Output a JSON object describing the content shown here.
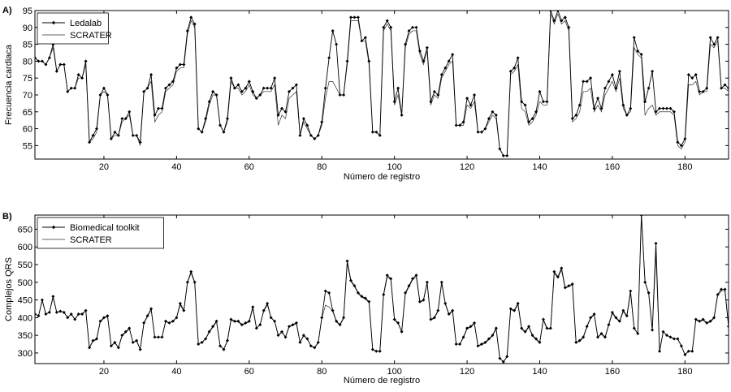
{
  "chart_data": [
    {
      "type": "line",
      "panel_label": "A)",
      "xlabel": "Número de registro",
      "ylabel": "Frecuencia cardiaca",
      "xlim": [
        1,
        192
      ],
      "ylim": [
        51,
        95
      ],
      "xticks": [
        20,
        40,
        60,
        80,
        100,
        120,
        140,
        160,
        180
      ],
      "yticks": [
        55,
        60,
        65,
        70,
        75,
        80,
        85,
        90,
        95
      ],
      "legend_position": "top-left",
      "grid": false,
      "series": [
        {
          "name": "Ledalab",
          "marker": "diamond",
          "values": [
            81,
            80,
            80,
            79,
            81,
            85,
            77,
            79,
            79,
            71,
            72,
            72,
            76,
            75,
            80,
            56,
            58,
            60,
            70,
            72,
            70,
            57,
            59,
            58,
            63,
            63,
            65,
            58,
            58,
            56,
            71,
            72,
            76,
            64,
            66,
            66,
            72,
            73,
            74,
            78,
            79,
            79,
            89,
            93,
            91,
            60,
            59,
            63,
            68,
            71,
            70,
            61,
            59,
            63,
            75,
            72,
            73,
            71,
            72,
            74,
            71,
            69,
            70,
            72,
            72,
            72,
            75,
            64,
            66,
            65,
            71,
            72,
            73,
            58,
            63,
            61,
            58,
            57,
            58,
            62,
            72,
            81,
            89,
            85,
            70,
            70,
            80,
            93,
            93,
            93,
            86,
            87,
            80,
            59,
            59,
            58,
            90,
            92,
            90,
            68,
            72,
            64,
            85,
            89,
            90,
            90,
            83,
            80,
            84,
            68,
            71,
            70,
            76,
            78,
            80,
            82,
            61,
            61,
            62,
            69,
            67,
            70,
            59,
            59,
            60,
            63,
            65,
            64,
            54,
            52,
            52,
            77,
            78,
            81,
            68,
            67,
            62,
            63,
            65,
            71,
            68,
            68,
            95,
            92,
            95,
            92,
            93,
            90,
            63,
            64,
            67,
            74,
            74,
            75,
            66,
            69,
            66,
            72,
            74,
            76,
            72,
            77,
            67,
            64,
            66,
            87,
            83,
            82,
            68,
            72,
            77,
            65,
            66,
            66,
            66,
            66,
            65,
            56,
            55,
            57,
            76,
            75,
            76,
            71,
            71,
            72,
            87,
            85,
            87,
            72,
            73,
            72,
            64,
            62,
            62
          ]
        },
        {
          "name": "SCRATER",
          "marker": "none",
          "values": [
            81,
            80,
            80,
            79,
            81,
            84,
            77,
            79,
            79,
            71,
            72,
            72,
            75,
            75,
            79,
            56,
            57,
            59,
            70,
            71,
            70,
            57,
            58,
            58,
            62,
            63,
            64,
            58,
            58,
            55,
            71,
            72,
            74,
            62,
            64,
            65,
            71,
            72,
            73,
            77,
            78,
            78,
            88,
            92,
            90,
            60,
            59,
            62,
            67,
            70,
            70,
            61,
            59,
            62,
            74,
            72,
            72,
            70,
            71,
            73,
            70,
            69,
            70,
            71,
            71,
            71,
            73,
            61,
            64,
            63,
            69,
            70,
            71,
            58,
            62,
            60,
            58,
            57,
            58,
            61,
            69,
            74,
            74,
            72,
            70,
            70,
            79,
            92,
            92,
            92,
            86,
            86,
            79,
            59,
            59,
            58,
            89,
            91,
            89,
            67,
            70,
            64,
            84,
            88,
            89,
            89,
            82,
            79,
            83,
            67,
            70,
            69,
            75,
            77,
            79,
            80,
            61,
            61,
            61,
            67,
            66,
            68,
            59,
            59,
            60,
            62,
            64,
            63,
            54,
            52,
            52,
            76,
            77,
            79,
            66,
            65,
            61,
            62,
            64,
            68,
            67,
            67,
            94,
            91,
            94,
            91,
            92,
            89,
            62,
            63,
            65,
            71,
            71,
            72,
            65,
            67,
            65,
            70,
            72,
            74,
            71,
            75,
            66,
            64,
            65,
            84,
            82,
            81,
            64,
            66,
            67,
            64,
            65,
            65,
            65,
            65,
            64,
            55,
            54,
            56,
            73,
            73,
            74,
            70,
            71,
            71,
            85,
            84,
            86,
            72,
            72,
            71,
            63,
            61,
            61
          ]
        }
      ]
    },
    {
      "type": "line",
      "panel_label": "B)",
      "xlabel": "Número de registro",
      "ylabel": "Complejos QRS",
      "xlim": [
        1,
        192
      ],
      "ylim": [
        270,
        690
      ],
      "xticks": [
        20,
        40,
        60,
        80,
        100,
        120,
        140,
        160,
        180
      ],
      "yticks": [
        300,
        350,
        400,
        450,
        500,
        550,
        600,
        650
      ],
      "legend_position": "top-left",
      "grid": false,
      "series": [
        {
          "name": "Biomedical toolkit",
          "marker": "diamond",
          "values": [
            410,
            405,
            450,
            410,
            415,
            460,
            415,
            418,
            415,
            400,
            410,
            395,
            410,
            410,
            420,
            315,
            335,
            340,
            390,
            400,
            405,
            320,
            330,
            315,
            350,
            360,
            370,
            330,
            335,
            310,
            385,
            405,
            425,
            345,
            345,
            345,
            390,
            385,
            390,
            400,
            440,
            420,
            500,
            530,
            500,
            325,
            330,
            340,
            360,
            375,
            390,
            320,
            310,
            335,
            395,
            390,
            390,
            380,
            385,
            390,
            430,
            370,
            380,
            420,
            440,
            400,
            390,
            350,
            360,
            345,
            375,
            380,
            385,
            330,
            350,
            340,
            320,
            315,
            330,
            400,
            475,
            470,
            420,
            390,
            380,
            400,
            560,
            505,
            490,
            470,
            460,
            455,
            445,
            310,
            305,
            305,
            465,
            520,
            510,
            395,
            385,
            360,
            470,
            490,
            510,
            520,
            445,
            450,
            500,
            395,
            400,
            420,
            500,
            440,
            410,
            420,
            325,
            325,
            345,
            370,
            375,
            385,
            320,
            325,
            330,
            340,
            350,
            370,
            285,
            275,
            290,
            425,
            420,
            440,
            370,
            360,
            375,
            350,
            340,
            330,
            395,
            370,
            370,
            530,
            515,
            540,
            485,
            490,
            495,
            330,
            335,
            345,
            375,
            400,
            410,
            345,
            355,
            345,
            380,
            415,
            400,
            390,
            420,
            405,
            475,
            370,
            355,
            690,
            500,
            470,
            365,
            610,
            305,
            360,
            350,
            345,
            340,
            340,
            320,
            295,
            305,
            305,
            395,
            390,
            395,
            385,
            390,
            400,
            465,
            480,
            480,
            375,
            395,
            405,
            330,
            335,
            335
          ]
        },
        {
          "name": "SCRATER",
          "marker": "none",
          "values": [
            410,
            405,
            448,
            410,
            415,
            456,
            415,
            418,
            415,
            400,
            410,
            395,
            410,
            410,
            420,
            315,
            333,
            338,
            388,
            398,
            403,
            320,
            328,
            315,
            348,
            358,
            368,
            330,
            333,
            310,
            383,
            403,
            422,
            345,
            345,
            345,
            388,
            385,
            390,
            400,
            436,
            418,
            498,
            526,
            498,
            325,
            330,
            340,
            358,
            373,
            388,
            320,
            310,
            333,
            393,
            388,
            388,
            378,
            383,
            388,
            426,
            370,
            380,
            418,
            436,
            400,
            390,
            350,
            358,
            345,
            373,
            378,
            383,
            330,
            348,
            340,
            320,
            315,
            328,
            398,
            435,
            430,
            418,
            388,
            378,
            398,
            553,
            502,
            488,
            468,
            458,
            452,
            443,
            310,
            305,
            305,
            462,
            515,
            507,
            393,
            383,
            360,
            467,
            487,
            507,
            515,
            443,
            448,
            497,
            393,
            398,
            418,
            497,
            438,
            408,
            418,
            325,
            325,
            343,
            368,
            373,
            383,
            320,
            323,
            328,
            338,
            348,
            368,
            285,
            275,
            290,
            423,
            418,
            437,
            368,
            358,
            373,
            348,
            338,
            328,
            393,
            368,
            368,
            526,
            512,
            535,
            482,
            488,
            492,
            330,
            333,
            343,
            373,
            398,
            408,
            345,
            353,
            343,
            378,
            412,
            398,
            388,
            417,
            403,
            470,
            368,
            355,
            690,
            500,
            468,
            365,
            580,
            305,
            360,
            350,
            345,
            340,
            340,
            320,
            295,
            305,
            305,
            393,
            388,
            393,
            383,
            388,
            398,
            462,
            475,
            475,
            375,
            393,
            403,
            330,
            335,
            335
          ]
        }
      ]
    }
  ]
}
